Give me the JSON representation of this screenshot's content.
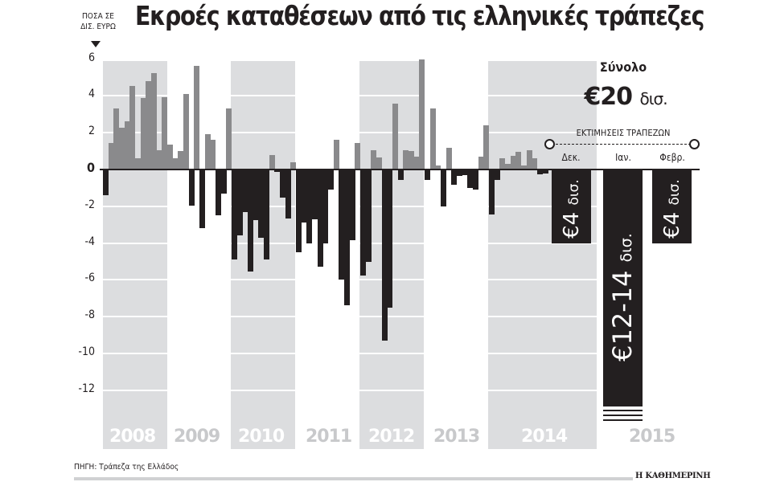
{
  "title": "Εκροές καταθέσεων από τις ελληνικές τράπεζες",
  "unit_label": [
    "ΠΟΣΑ ΣΕ",
    "ΔΙΣ. ΕΥΡΩ"
  ],
  "source": "ΠΗΓΗ: Τράπεζα της Ελλάδος",
  "brand": "Η ΚΑΘΗΜΕΡΙΝΗ",
  "summary": {
    "total_label": "Σύνολο",
    "total_value": "€20",
    "total_unit": "δισ.",
    "estimates_title": "ΕΚΤΙΜΗΣΕΙΣ ΤΡΑΠΕΖΩΝ",
    "months": [
      "Δεκ.",
      "Ιαν.",
      "Φεβρ."
    ],
    "estimates": [
      {
        "month": "Δεκ.",
        "label": "€4",
        "unit": "δισ.",
        "value": -4
      },
      {
        "month": "Ιαν.",
        "label": "€12-14",
        "unit": "δισ.",
        "value": -13
      },
      {
        "month": "Φεβρ.",
        "label": "€4",
        "unit": "δισ.",
        "value": -4
      }
    ]
  },
  "colors": {
    "inflow": "#8a8a8c",
    "outflow": "#231f20",
    "band": "#dcdddf"
  },
  "chart_data": {
    "type": "bar",
    "title": "Εκροές καταθέσεων από τις ελληνικές τράπεζες",
    "ylabel": "ΠΟΣΑ ΣΕ ΔΙΣ. ΕΥΡΩ",
    "xlabel": "",
    "ylim": [
      -13.5,
      6
    ],
    "yticks": [
      6,
      4,
      2,
      0,
      -2,
      -4,
      -6,
      -8,
      -10,
      -12
    ],
    "grid": true,
    "years": [
      "2008",
      "2009",
      "2010",
      "2011",
      "2012",
      "2013",
      "2014",
      "2015"
    ],
    "monthly_values": {
      "2008": [
        -1.4,
        1.45,
        3.3,
        2.25,
        2.6,
        4.55,
        0.6,
        3.9,
        4.8,
        5.25,
        1.05,
        3.95
      ],
      "2009": [
        1.35,
        0.6,
        1.0,
        4.1,
        -1.95,
        5.65,
        -3.2,
        1.9,
        1.6,
        -2.5,
        -1.3,
        3.3
      ],
      "2010": [
        -4.9,
        -3.6,
        -2.3,
        -5.55,
        -2.75,
        -3.7,
        -4.9,
        0.8,
        -0.15,
        -1.55,
        -2.65,
        0.4
      ],
      "2011": [
        -4.5,
        -2.9,
        -4.0,
        -2.7,
        -5.3,
        -4.0,
        -1.1,
        1.6,
        -6.0,
        -7.4,
        -3.85,
        1.45
      ],
      "2012": [
        -5.75,
        -5.0,
        1.05,
        0.65,
        -9.3,
        -7.5,
        3.6,
        -0.55,
        1.05,
        1.0,
        0.7,
        6.0
      ],
      "2013": [
        -0.55,
        3.3,
        0.2,
        -2.0,
        1.2,
        -0.85,
        -0.35,
        -0.3,
        -1.0,
        -1.1,
        0.7,
        2.4
      ],
      "2014": [
        -2.45,
        -0.55,
        0.6,
        0.3,
        0.75,
        0.95,
        0.2,
        1.05,
        0.6,
        -0.25,
        -0.2
      ]
    },
    "estimates": [
      {
        "period": "Δεκ. 2014",
        "value": -4
      },
      {
        "period": "Ιαν. 2015",
        "value": -13,
        "range": [
          -12,
          -14
        ]
      },
      {
        "period": "Φεβρ. 2015",
        "value": -4
      }
    ],
    "annotations": [
      "Σύνολο €20 δισ.",
      "ΕΚΤΙΜΗΣΕΙΣ ΤΡΑΠΕΖΩΝ"
    ],
    "legend": "positive = inflow (gray), negative = outflow (black)"
  }
}
